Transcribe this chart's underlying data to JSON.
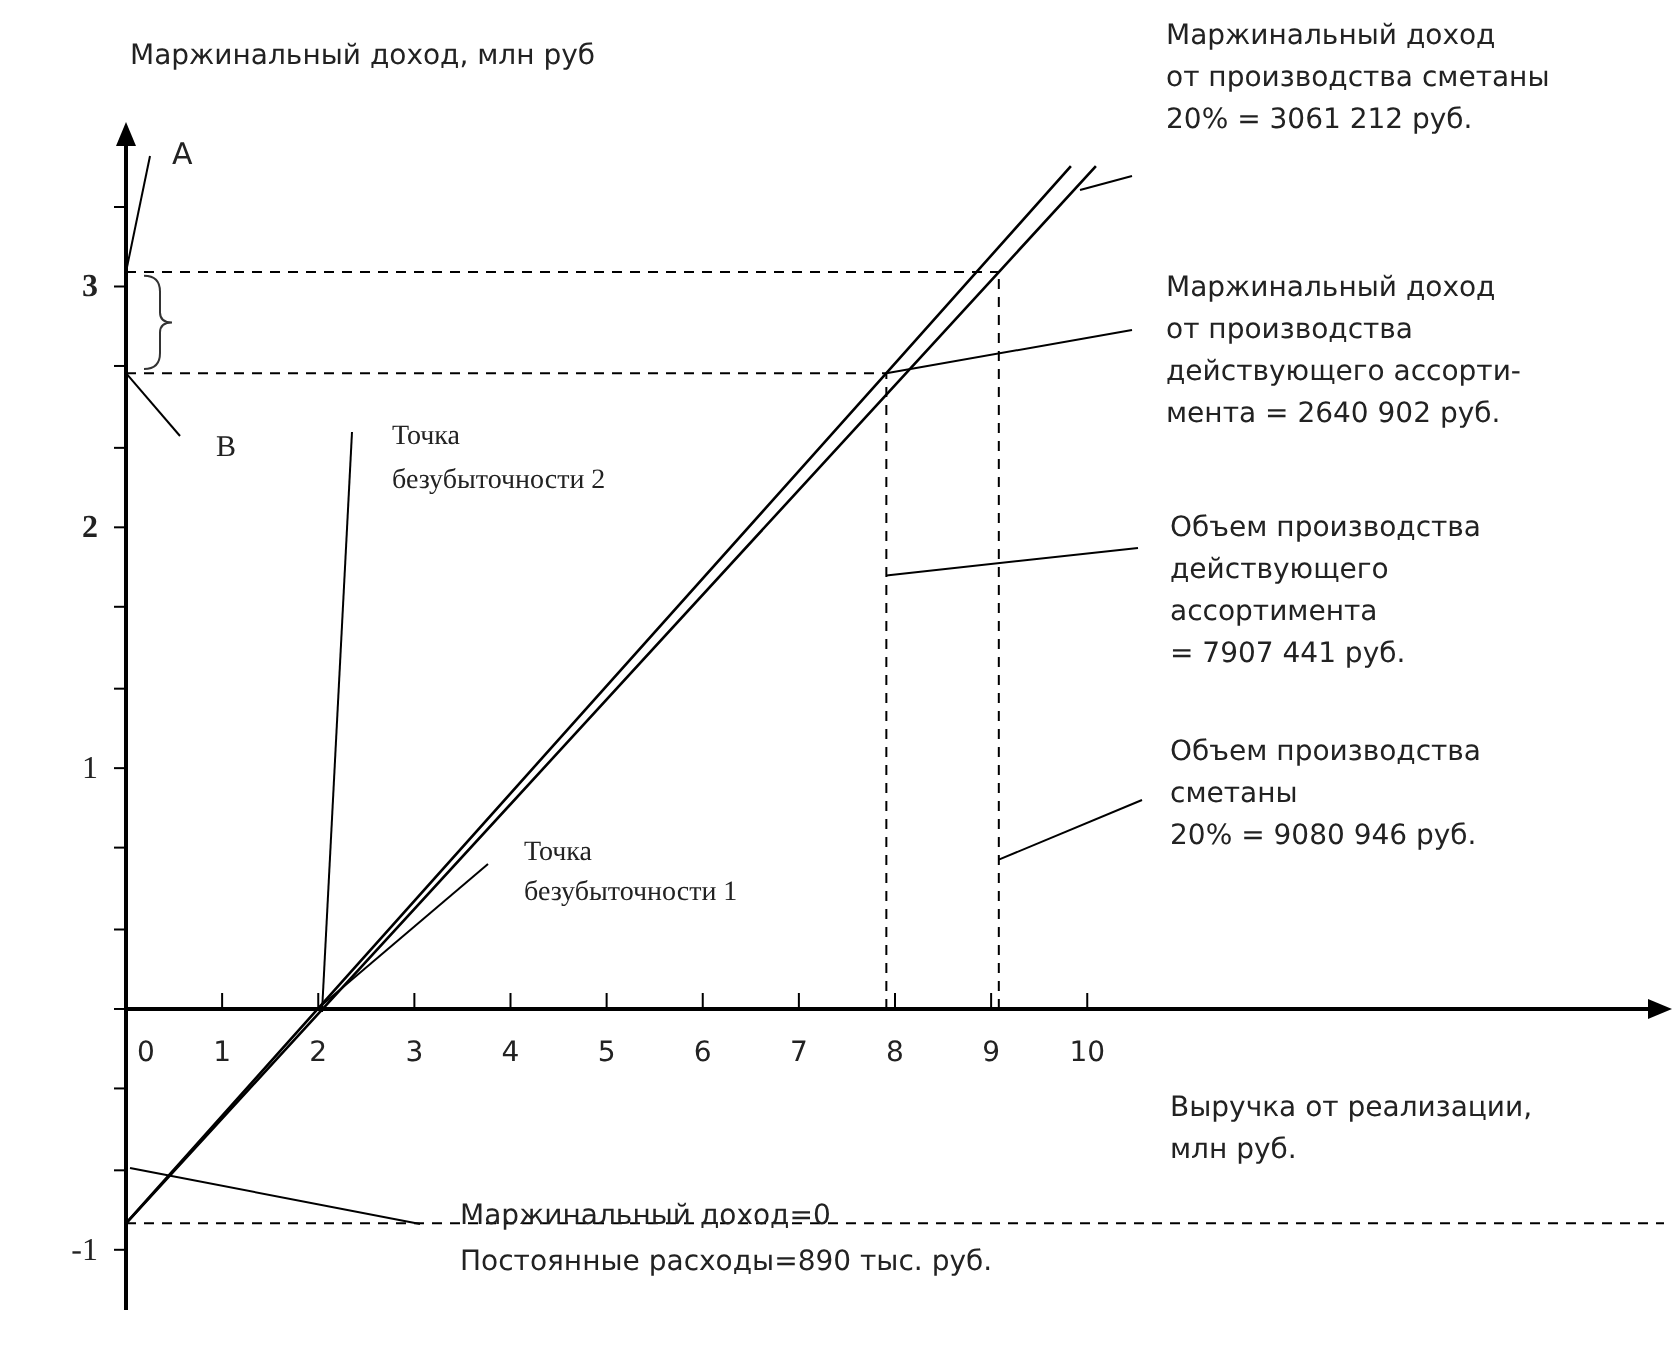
{
  "chart_data": {
    "type": "line",
    "xlabel": "Выручка от реализации,\nмлн руб.",
    "ylabel": "Маржинальный доход, млн руб",
    "xlim": [
      0,
      16
    ],
    "xticks": [
      0,
      1,
      2,
      3,
      4,
      5,
      6,
      7,
      8,
      9,
      10
    ],
    "ylim": [
      -1.25,
      3.6
    ],
    "yticks": [
      -1,
      {
        "value": -0.67,
        "label": null
      },
      {
        "value": -0.33,
        "label": null
      },
      {
        "value": 0,
        "label": null
      },
      {
        "value": 0.33,
        "label": null
      },
      {
        "value": 0.67,
        "label": null
      },
      1,
      {
        "value": 1.33,
        "label": null
      },
      {
        "value": 1.67,
        "label": null
      },
      2,
      {
        "value": 2.33,
        "label": null
      },
      {
        "value": 2.67,
        "label": null
      },
      3,
      {
        "value": 3.33,
        "label": null
      }
    ],
    "marker": "none",
    "line_style": "solid",
    "series": [
      {
        "color": "#000000",
        "x": [
          0,
          7.91,
          9.83
        ],
        "values": [
          -0.89,
          2.64,
          3.5
        ]
      },
      {
        "color": "#000000",
        "x": [
          0,
          9.08,
          10.09
        ],
        "values": [
          -0.89,
          3.06,
          3.5
        ]
      }
    ],
    "ref_lines": [
      {
        "axis": "y",
        "value": 3.06,
        "line_style": "dashed"
      },
      {
        "axis": "y",
        "value": 2.64,
        "line_style": "dashed"
      },
      {
        "axis": "y",
        "value": -0.89,
        "line_style": "dashed"
      },
      {
        "axis": "x",
        "value": 7.91,
        "line_style": "dashed"
      },
      {
        "axis": "x",
        "value": 9.08,
        "line_style": "dashed"
      }
    ],
    "annotations": [
      {
        "text": "A",
        "x": 0,
        "y": 3.06
      },
      {
        "text": "B",
        "x": 0,
        "y": 2.64
      },
      "Точка\nбезубыточности 2",
      {
        "text": "Точка\nбезубыточности 1",
        "x": 1.99,
        "y": 0
      },
      "Маржинальный доход\nот производства сметаны\n20% = 3061 212 руб.",
      {
        "text": "Маржинальный доход\nот производства\nдействующего ассорти-\nмента = 2640 902 руб.",
        "x": 7.91,
        "y": 2.64
      },
      {
        "text": "Объем производства\nдействующего\nассортимента\n= 7907 441 руб.",
        "x": 7.91,
        "y": 1.8
      },
      {
        "text": "Объем производства\nсметаны\n20% = 9080 946 руб.",
        "x": 9.08,
        "y": 0.62
      },
      "Маржинальный доход=0\nПостоянные расходы=890 тыс. руб."
    ]
  }
}
